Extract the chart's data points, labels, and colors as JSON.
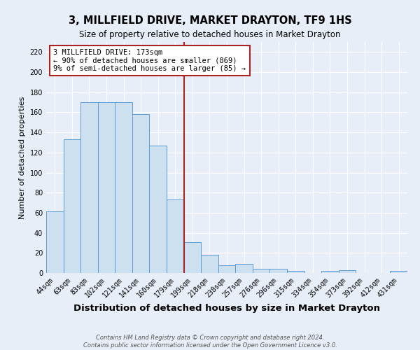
{
  "title": "3, MILLFIELD DRIVE, MARKET DRAYTON, TF9 1HS",
  "subtitle": "Size of property relative to detached houses in Market Drayton",
  "xlabel": "Distribution of detached houses by size in Market Drayton",
  "ylabel": "Number of detached properties",
  "categories": [
    "44sqm",
    "63sqm",
    "83sqm",
    "102sqm",
    "121sqm",
    "141sqm",
    "160sqm",
    "179sqm",
    "199sqm",
    "218sqm",
    "238sqm",
    "257sqm",
    "276sqm",
    "296sqm",
    "315sqm",
    "334sqm",
    "354sqm",
    "373sqm",
    "392sqm",
    "412sqm",
    "431sqm"
  ],
  "values": [
    61,
    133,
    170,
    170,
    170,
    158,
    127,
    73,
    31,
    18,
    8,
    9,
    4,
    4,
    2,
    0,
    2,
    3,
    0,
    0,
    2
  ],
  "bar_color": "#cce0f0",
  "bar_edge_color": "#5b9bd5",
  "vline_x": 7.5,
  "vline_color": "#aa2222",
  "annotation_text": "3 MILLFIELD DRIVE: 173sqm\n← 90% of detached houses are smaller (869)\n9% of semi-detached houses are larger (85) →",
  "annotation_box_color": "#ffffff",
  "annotation_box_edge_color": "#aa2222",
  "ylim": [
    0,
    230
  ],
  "yticks": [
    0,
    20,
    40,
    60,
    80,
    100,
    120,
    140,
    160,
    180,
    200,
    220
  ],
  "background_color": "#e8eef8",
  "footer_line1": "Contains HM Land Registry data © Crown copyright and database right 2024.",
  "footer_line2": "Contains public sector information licensed under the Open Government Licence v3.0.",
  "title_fontsize": 10.5,
  "subtitle_fontsize": 8.5,
  "xlabel_fontsize": 9.5,
  "ylabel_fontsize": 8,
  "tick_fontsize": 7,
  "annotation_fontsize": 7.5,
  "footer_fontsize": 6
}
